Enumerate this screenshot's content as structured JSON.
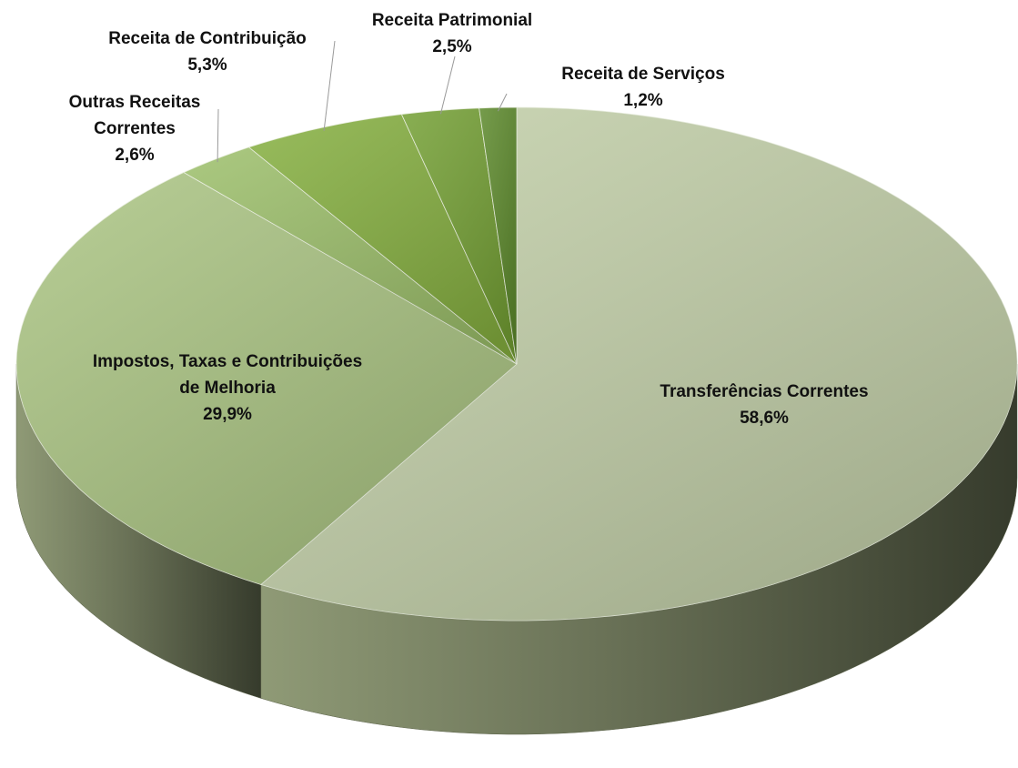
{
  "chart_data": {
    "type": "pie",
    "categories": [
      "Transferências Correntes",
      "Impostos, Taxas e Contribuições de Melhoria",
      "Outras Receitas Correntes",
      "Receita de Contribuição",
      "Receita Patrimonial",
      "Receita de Serviços"
    ],
    "values": [
      58.6,
      29.9,
      2.6,
      5.3,
      2.5,
      1.2
    ],
    "value_labels": [
      "58,6%",
      "29,9%",
      "2,6%",
      "5,3%",
      "2,5%",
      "1,2%"
    ],
    "colors": [
      "#c4d1aa",
      "#abc583",
      "#9cbf6a",
      "#86b040",
      "#74a034",
      "#5d8a2c"
    ]
  }
}
